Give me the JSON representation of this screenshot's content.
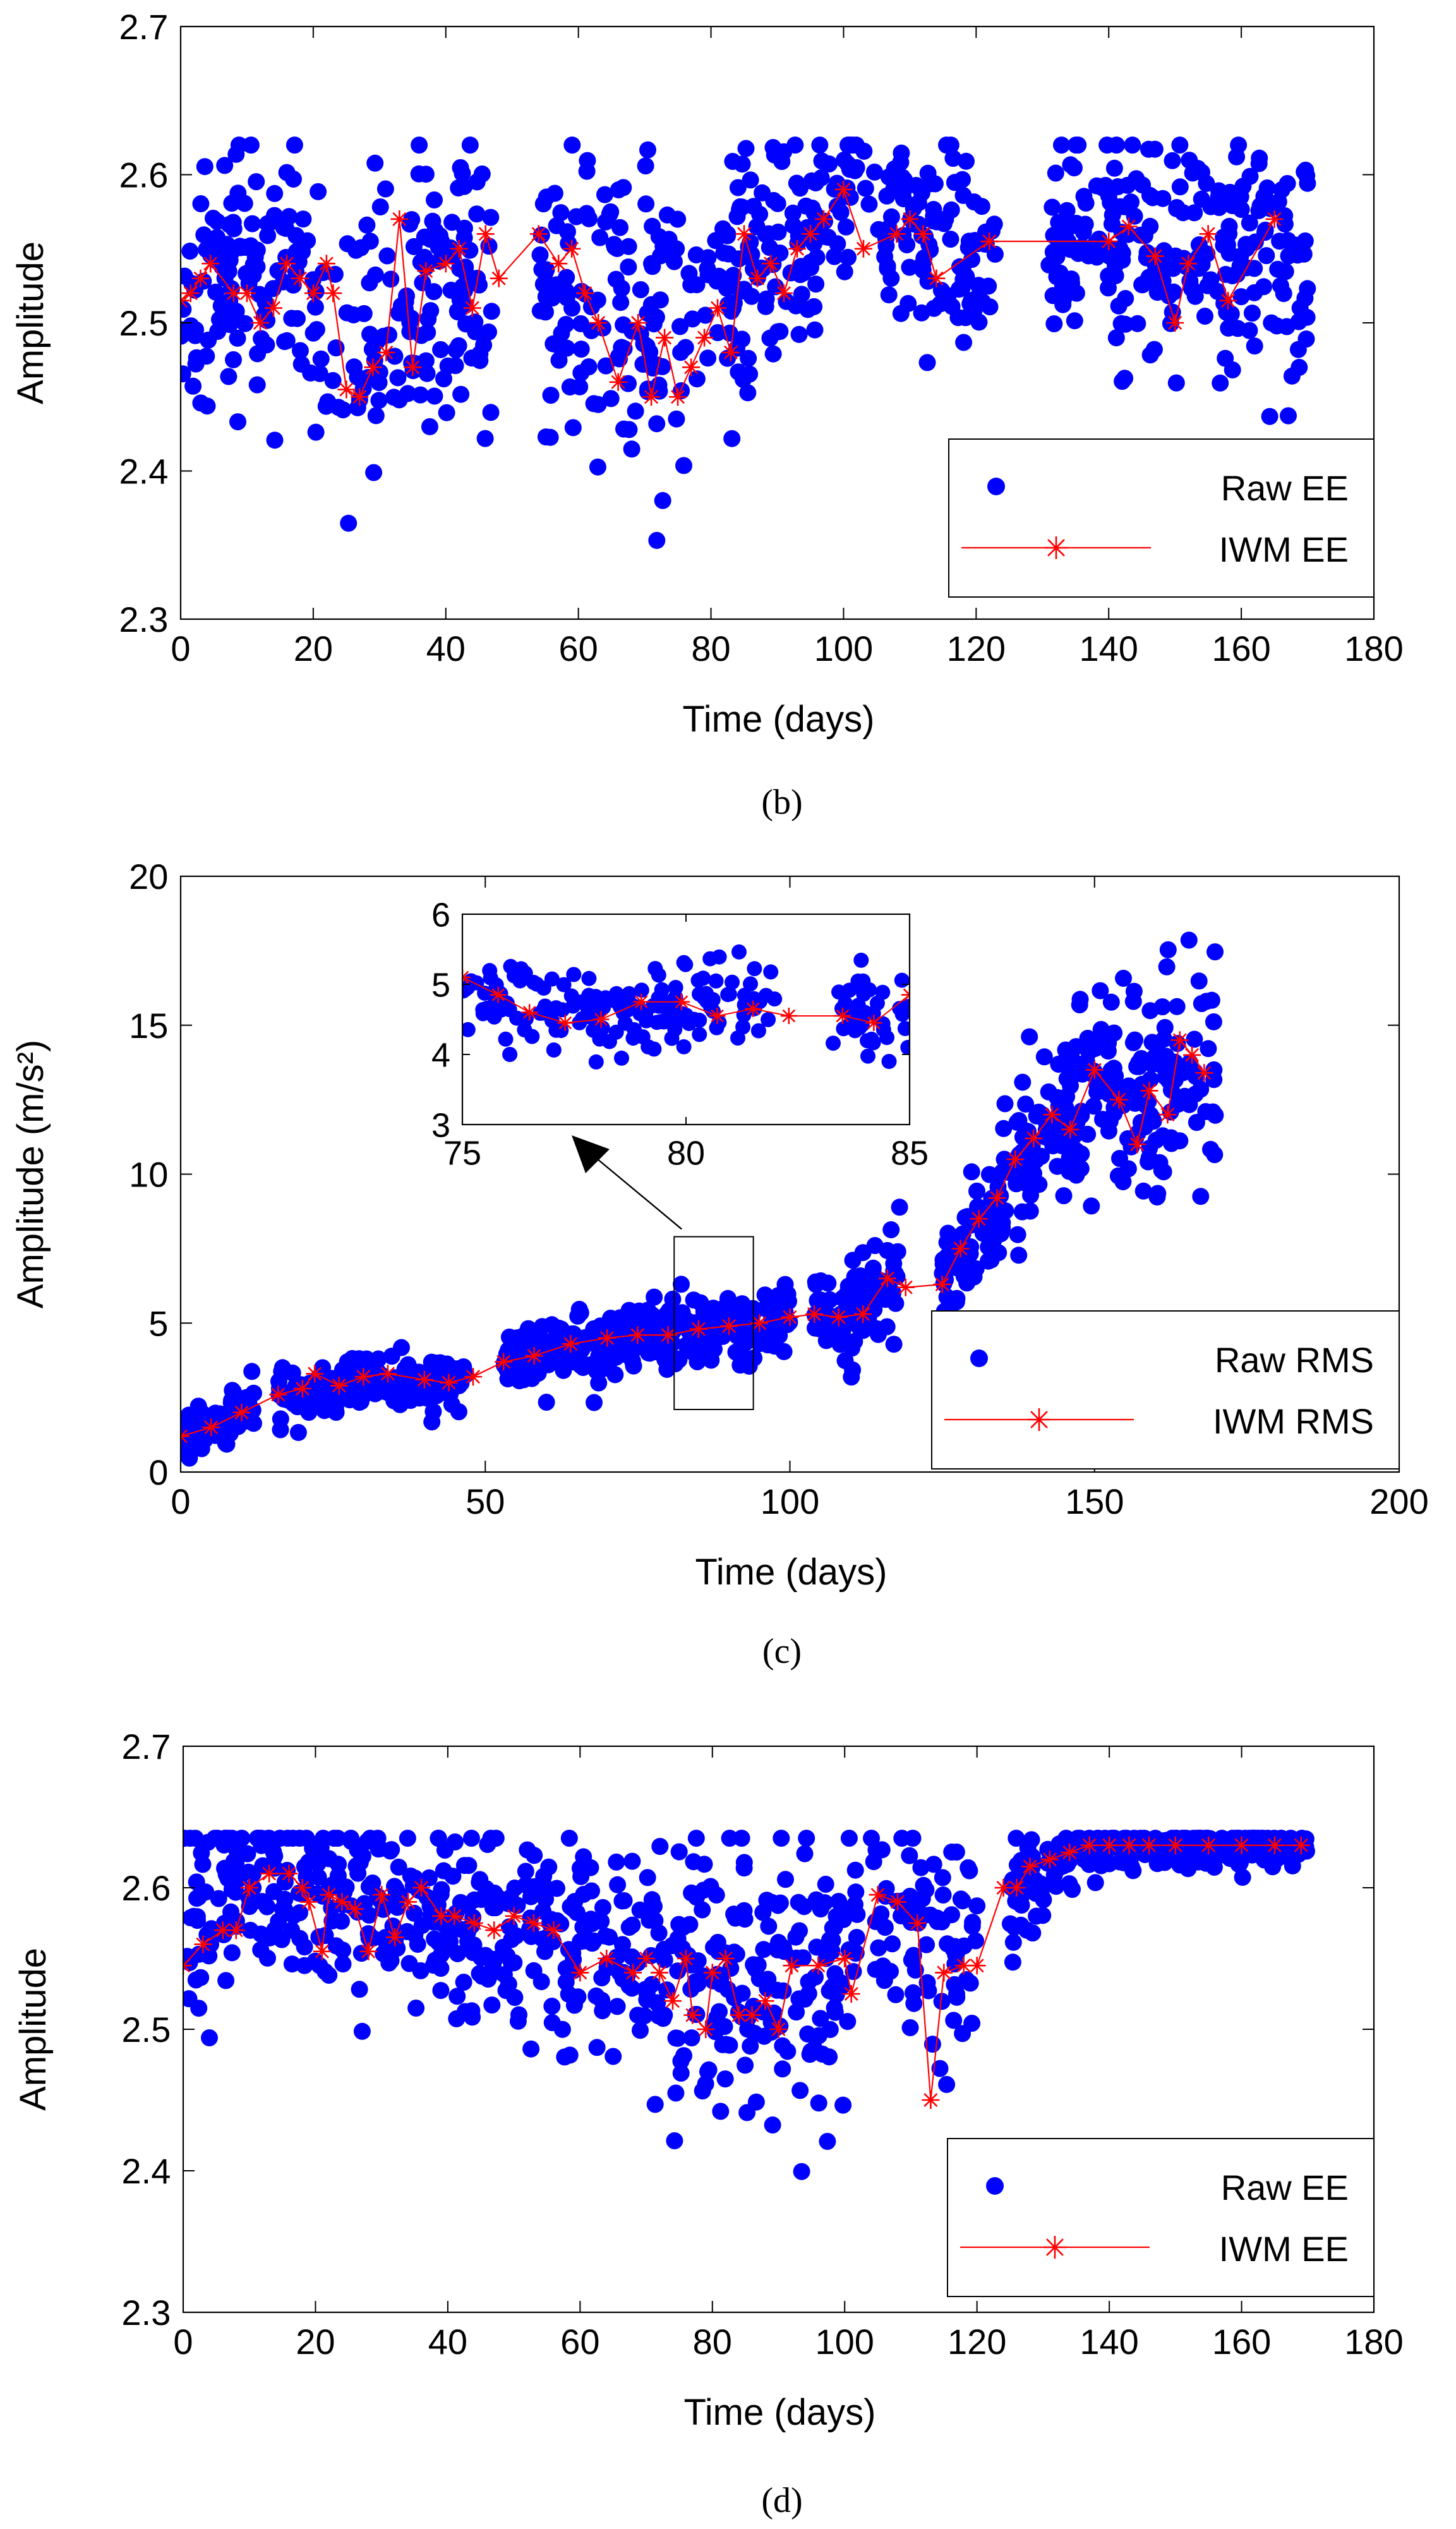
{
  "colors": {
    "raw": "#0000ff",
    "iwm": "#ff0000",
    "axis": "#000000",
    "arrow": "#000000"
  },
  "chart_data": [
    {
      "id": "b",
      "type": "scatter",
      "caption": "(b)",
      "caption_letter": "b",
      "xlabel": "Time (days)",
      "ylabel": "Amplitude",
      "xlim": [
        0,
        180
      ],
      "ylim": [
        2.3,
        2.7
      ],
      "xticks": [
        0,
        20,
        40,
        60,
        80,
        100,
        120,
        140,
        160,
        180
      ],
      "yticks": [
        2.3,
        2.4,
        2.5,
        2.6,
        2.7
      ],
      "tick_labels_x": [
        "0",
        "20",
        "40",
        "60",
        "80",
        "100",
        "120",
        "140",
        "160",
        "180"
      ],
      "tick_labels_y": [
        "2.3",
        "2.4",
        "2.5",
        "2.6",
        "2.7"
      ],
      "legend": {
        "placement": "bottom-right",
        "entries": [
          "Raw EE",
          "IWM EE"
        ]
      },
      "raw_model": {
        "segments": [
          [
            0,
            47
          ],
          [
            54,
            78
          ],
          [
            78,
            102
          ],
          [
            103,
            123
          ],
          [
            131,
            170
          ]
        ],
        "center": [
          [
            0,
            2.52
          ],
          [
            15,
            2.53
          ],
          [
            25,
            2.49
          ],
          [
            40,
            2.53
          ],
          [
            47,
            2.53
          ],
          [
            54,
            2.54
          ],
          [
            62,
            2.52
          ],
          [
            70,
            2.5
          ],
          [
            78,
            2.5
          ],
          [
            85,
            2.54
          ],
          [
            95,
            2.56
          ],
          [
            100,
            2.58
          ],
          [
            110,
            2.56
          ],
          [
            122,
            2.55
          ],
          [
            131,
            2.55
          ],
          [
            150,
            2.55
          ],
          [
            170,
            2.55
          ]
        ],
        "spread": [
          [
            0,
            0.04
          ],
          [
            20,
            0.05
          ],
          [
            40,
            0.05
          ],
          [
            60,
            0.05
          ],
          [
            75,
            0.06
          ],
          [
            80,
            0.05
          ],
          [
            95,
            0.035
          ],
          [
            110,
            0.035
          ],
          [
            122,
            0.04
          ],
          [
            140,
            0.04
          ],
          [
            170,
            0.04
          ]
        ],
        "outlier_low": 2.29,
        "outlier_high": 2.62,
        "count": 880,
        "seed": 11
      },
      "series": [
        {
          "name": "IWM EE",
          "x": [
            0,
            1.5,
            3,
            4.5,
            8,
            10,
            12,
            14,
            16,
            18,
            20,
            22,
            23,
            25,
            27,
            29,
            31,
            33,
            35,
            37,
            40,
            42,
            44,
            46,
            48,
            54,
            57,
            59,
            61,
            63,
            66,
            69,
            71,
            73,
            75,
            77,
            79,
            81,
            83,
            85,
            87,
            89,
            91,
            93,
            95,
            97,
            100,
            103,
            108,
            110,
            112,
            114,
            122,
            140,
            143,
            147,
            150,
            152,
            155,
            158,
            165
          ],
          "y": [
            2.515,
            2.52,
            2.53,
            2.54,
            2.52,
            2.52,
            2.5,
            2.51,
            2.54,
            2.53,
            2.52,
            2.54,
            2.52,
            2.455,
            2.45,
            2.47,
            2.48,
            2.57,
            2.47,
            2.535,
            2.54,
            2.55,
            2.51,
            2.56,
            2.53,
            2.56,
            2.54,
            2.55,
            2.52,
            2.5,
            2.46,
            2.5,
            2.45,
            2.49,
            2.45,
            2.47,
            2.49,
            2.51,
            2.48,
            2.56,
            2.53,
            2.54,
            2.52,
            2.55,
            2.56,
            2.57,
            2.59,
            2.55,
            2.56,
            2.57,
            2.56,
            2.53,
            2.555,
            2.555,
            2.565,
            2.545,
            2.5,
            2.54,
            2.56,
            2.515,
            2.57
          ]
        }
      ]
    },
    {
      "id": "c",
      "type": "scatter",
      "caption": "(c)",
      "caption_letter": "c",
      "xlabel": "Time (days)",
      "ylabel": "Amplitude (m/s²)",
      "xlim": [
        0,
        200
      ],
      "ylim": [
        0,
        20
      ],
      "xticks": [
        0,
        50,
        100,
        150,
        200
      ],
      "yticks": [
        0,
        5,
        10,
        15,
        20
      ],
      "tick_labels_x": [
        "0",
        "50",
        "100",
        "150",
        "200"
      ],
      "tick_labels_y": [
        "0",
        "5",
        "10",
        "15",
        "20"
      ],
      "legend": {
        "placement": "bottom-right",
        "entries": [
          "Raw RMS",
          "IWM RMS"
        ]
      },
      "zoom_box": {
        "x": [
          81,
          94
        ],
        "y": [
          2.1,
          7.9
        ]
      },
      "raw_model": {
        "segments": [
          [
            0,
            12
          ],
          [
            16,
            47
          ],
          [
            53,
            100
          ],
          [
            104,
            118
          ],
          [
            125,
            170
          ]
        ],
        "center": [
          [
            0,
            1.2
          ],
          [
            10,
            2.0
          ],
          [
            16,
            2.6
          ],
          [
            30,
            3.1
          ],
          [
            47,
            3.1
          ],
          [
            53,
            3.7
          ],
          [
            70,
            4.4
          ],
          [
            90,
            4.8
          ],
          [
            100,
            5.1
          ],
          [
            110,
            5.4
          ],
          [
            118,
            6.3
          ],
          [
            125,
            6.5
          ],
          [
            135,
            9.5
          ],
          [
            145,
            12.0
          ],
          [
            150,
            13.0
          ],
          [
            158,
            12.8
          ],
          [
            165,
            13.2
          ],
          [
            170,
            13.4
          ]
        ],
        "spread": [
          [
            0,
            0.4
          ],
          [
            50,
            0.5
          ],
          [
            90,
            0.6
          ],
          [
            118,
            0.8
          ],
          [
            125,
            0.8
          ],
          [
            140,
            1.2
          ],
          [
            165,
            1.8
          ],
          [
            170,
            1.8
          ]
        ],
        "outlier_low": null,
        "outlier_high": null,
        "count": 1000,
        "seed": 23
      },
      "series": [
        {
          "name": "IWM RMS",
          "x": [
            0,
            5,
            10,
            16,
            20,
            22,
            26,
            30,
            34,
            40,
            44,
            48,
            53,
            58,
            64,
            70,
            75,
            80,
            85,
            90,
            95,
            100,
            104,
            108,
            112,
            116,
            119,
            125,
            128,
            131,
            134,
            137,
            140,
            143,
            146,
            150,
            154,
            157,
            159,
            162,
            164,
            166,
            168
          ],
          "y": [
            1.2,
            1.5,
            2.0,
            2.6,
            2.8,
            3.3,
            2.9,
            3.2,
            3.3,
            3.1,
            3.0,
            3.2,
            3.7,
            3.9,
            4.3,
            4.5,
            4.6,
            4.6,
            4.8,
            4.9,
            5.0,
            5.2,
            5.3,
            5.2,
            5.3,
            6.5,
            6.2,
            6.3,
            7.5,
            8.5,
            9.2,
            10.5,
            11.2,
            12.0,
            11.5,
            13.5,
            12.5,
            11.0,
            12.8,
            12.0,
            14.5,
            14.0,
            13.4
          ]
        }
      ],
      "inset": {
        "xlim": [
          75,
          85
        ],
        "ylim": [
          3,
          6
        ],
        "xticks": [
          75,
          80,
          85
        ],
        "yticks": [
          3,
          4,
          5,
          6
        ],
        "tick_labels_x": [
          "75",
          "80",
          "85"
        ],
        "tick_labels_y": [
          "3",
          "4",
          "5",
          "6"
        ],
        "raw_model": {
          "segments": [
            [
              75,
              82
            ],
            [
              83.2,
              85
            ]
          ],
          "center": [
            [
              75,
              4.9
            ],
            [
              78,
              4.55
            ],
            [
              82,
              4.8
            ],
            [
              85,
              4.6
            ]
          ],
          "spread": [
            [
              75,
              0.3
            ],
            [
              85,
              0.3
            ]
          ],
          "outlier_low": null,
          "outlier_high": null,
          "count": 210,
          "seed": 5
        },
        "series": [
          {
            "name": "IWM RMS",
            "x": [
              75,
              75.8,
              76.5,
              77.3,
              78.1,
              79,
              79.9,
              80.7,
              81.5,
              82.3,
              83.5,
              84.2,
              85
            ],
            "y": [
              5.1,
              4.85,
              4.6,
              4.45,
              4.5,
              4.75,
              4.75,
              4.55,
              4.65,
              4.55,
              4.55,
              4.45,
              4.85
            ]
          }
        ]
      }
    },
    {
      "id": "d",
      "type": "scatter",
      "caption": "(d)",
      "caption_letter": "d",
      "xlabel": "Time (days)",
      "ylabel": "Amplitude",
      "xlim": [
        0,
        180
      ],
      "ylim": [
        2.3,
        2.7
      ],
      "xticks": [
        0,
        20,
        40,
        60,
        80,
        100,
        120,
        140,
        160,
        180
      ],
      "yticks": [
        2.3,
        2.4,
        2.5,
        2.6,
        2.7
      ],
      "tick_labels_x": [
        "0",
        "20",
        "40",
        "60",
        "80",
        "100",
        "120",
        "140",
        "160",
        "180"
      ],
      "tick_labels_y": [
        "2.3",
        "2.4",
        "2.5",
        "2.6",
        "2.7"
      ],
      "legend": {
        "placement": "bottom-right",
        "entries": [
          "Raw EE",
          "IWM EE"
        ]
      },
      "raw_model": {
        "segments": [
          [
            0,
            68
          ],
          [
            68,
            102
          ],
          [
            104,
            120
          ],
          [
            125,
            170
          ]
        ],
        "center": [
          [
            0,
            2.57
          ],
          [
            10,
            2.6
          ],
          [
            20,
            2.6
          ],
          [
            40,
            2.58
          ],
          [
            60,
            2.56
          ],
          [
            68,
            2.55
          ],
          [
            80,
            2.53
          ],
          [
            90,
            2.53
          ],
          [
            100,
            2.54
          ],
          [
            104,
            2.58
          ],
          [
            112,
            2.56
          ],
          [
            120,
            2.55
          ],
          [
            125,
            2.58
          ],
          [
            130,
            2.61
          ],
          [
            135,
            2.625
          ],
          [
            140,
            2.63
          ],
          [
            170,
            2.63
          ]
        ],
        "spread": [
          [
            0,
            0.035
          ],
          [
            60,
            0.035
          ],
          [
            68,
            0.05
          ],
          [
            100,
            0.05
          ],
          [
            104,
            0.04
          ],
          [
            120,
            0.04
          ],
          [
            125,
            0.03
          ],
          [
            132,
            0.01
          ],
          [
            170,
            0.006
          ]
        ],
        "outlier_low": 2.31,
        "outlier_high": 2.635,
        "count": 960,
        "seed": 41
      },
      "series": [
        {
          "name": "IWM EE",
          "x": [
            0,
            3,
            6,
            8,
            10,
            13,
            16,
            18,
            19,
            21,
            22,
            24,
            26,
            28,
            30,
            32,
            34,
            36,
            39,
            41,
            44,
            47,
            50,
            53,
            56,
            60,
            64,
            68,
            70,
            72,
            74,
            76,
            77,
            79,
            80,
            82,
            84,
            86,
            88,
            90,
            92,
            96,
            100,
            101,
            105,
            108,
            111,
            113,
            115,
            118,
            120,
            124,
            126,
            128,
            131,
            134,
            137,
            140,
            143,
            146,
            150,
            155,
            160,
            165,
            169
          ],
          "y": [
            2.545,
            2.56,
            2.57,
            2.57,
            2.6,
            2.61,
            2.61,
            2.6,
            2.59,
            2.555,
            2.595,
            2.59,
            2.585,
            2.555,
            2.595,
            2.565,
            2.59,
            2.6,
            2.58,
            2.58,
            2.575,
            2.57,
            2.58,
            2.575,
            2.57,
            2.54,
            2.55,
            2.54,
            2.55,
            2.54,
            2.52,
            2.55,
            2.51,
            2.5,
            2.54,
            2.55,
            2.51,
            2.51,
            2.52,
            2.5,
            2.545,
            2.545,
            2.55,
            2.525,
            2.595,
            2.59,
            2.575,
            2.45,
            2.54,
            2.545,
            2.545,
            2.6,
            2.6,
            2.615,
            2.62,
            2.625,
            2.63,
            2.63,
            2.63,
            2.63,
            2.63,
            2.63,
            2.63,
            2.63,
            2.63
          ]
        }
      ]
    }
  ]
}
